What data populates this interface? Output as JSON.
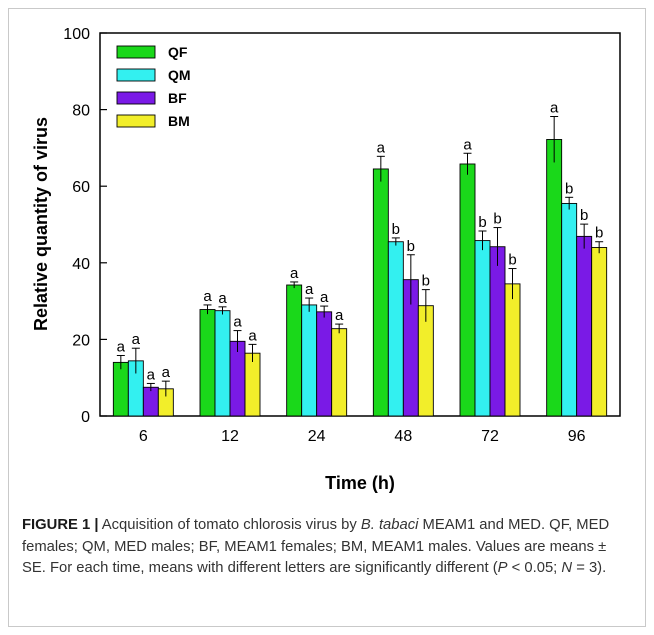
{
  "figure": {
    "caption": {
      "label": "FIGURE 1 |",
      "part1": " Acquisition of tomato chlorosis virus by ",
      "species": "B. tabaci",
      "part2": " MEAM1 and MED. QF, MED females; QM, MED males; BF, MEAM1 females; BM, MEAM1 males. Values are means ± SE. For each time, means with different letters are significantly different (",
      "p_italic": "P",
      "part3": " < 0.05; ",
      "n_italic": "N",
      "part4": " = 3)."
    }
  },
  "chart_data": {
    "type": "bar",
    "title": "",
    "xlabel": "Time (h)",
    "ylabel": "Relative quantity of virus",
    "ylim": [
      0,
      100
    ],
    "yticks": [
      0,
      20,
      40,
      60,
      80,
      100
    ],
    "categories": [
      "6",
      "12",
      "24",
      "48",
      "72",
      "96"
    ],
    "legend_position": "top-left",
    "series": [
      {
        "name": "QF",
        "color": "#1ad81a",
        "values": [
          14,
          27.8,
          34.2,
          64.5,
          65.8,
          72.2
        ],
        "errors": [
          1.8,
          1.2,
          0.8,
          3.3,
          2.8,
          6.0
        ],
        "letters": [
          "a",
          "a",
          "a",
          "a",
          "a",
          "a"
        ]
      },
      {
        "name": "QM",
        "color": "#33f0f0",
        "values": [
          14.4,
          27.5,
          29,
          45.5,
          45.8,
          55.5
        ],
        "errors": [
          3.3,
          1.0,
          1.8,
          1.0,
          2.5,
          1.6
        ],
        "letters": [
          "a",
          "a",
          "a",
          "b",
          "b",
          "b"
        ]
      },
      {
        "name": "BF",
        "color": "#7a1ae6",
        "values": [
          7.5,
          19.5,
          27.2,
          35.6,
          44.2,
          46.9
        ],
        "errors": [
          1.0,
          2.8,
          1.5,
          6.5,
          5.0,
          3.2
        ],
        "letters": [
          "a",
          "a",
          "a",
          "b",
          "b",
          "b"
        ]
      },
      {
        "name": "BM",
        "color": "#f2ee2a",
        "values": [
          7.1,
          16.4,
          22.8,
          28.8,
          34.5,
          44
        ],
        "errors": [
          2.0,
          2.3,
          1.2,
          4.2,
          4.0,
          1.5
        ],
        "letters": [
          "a",
          "a",
          "a",
          "b",
          "b",
          "b"
        ]
      }
    ]
  }
}
